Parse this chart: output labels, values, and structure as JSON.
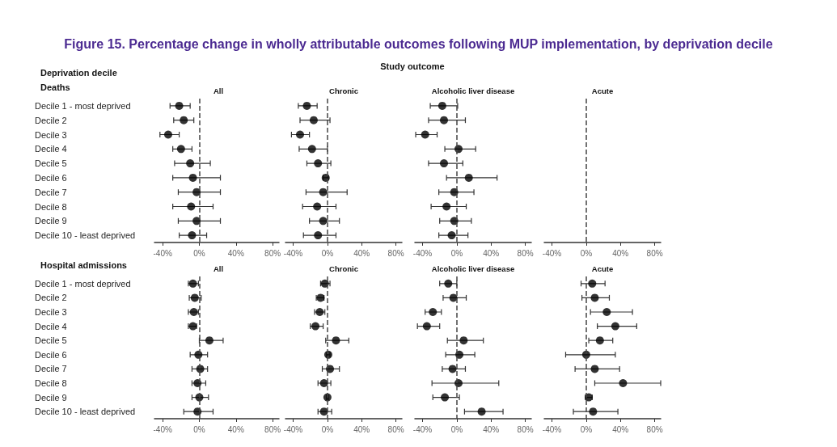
{
  "chart_data": [
    {
      "type": "scatter",
      "orientation": "horizontal",
      "title": "All",
      "ylabel": "Deaths",
      "annotations": [
        "Figure 15. Percentage change in wholly attributable outcomes following MUP implementation, by deprivation decile",
        "Study outcome",
        "Deprivation decile"
      ],
      "categories": [
        "Decile 1 - most deprived",
        "Decile 2",
        "Decile 3",
        "Decile 4",
        "Decile 5",
        "Decile 6",
        "Decile 7",
        "Decile 8",
        "Decile 9",
        "Decile 10 - least deprived"
      ],
      "values": [
        -22,
        -17,
        -34,
        -20,
        -10,
        -7,
        -3,
        -9,
        -3,
        -8
      ],
      "errors": [
        [
          -32,
          -10
        ],
        [
          -28,
          -6
        ],
        [
          -43,
          -22
        ],
        [
          -29,
          -8
        ],
        [
          -27,
          12
        ],
        [
          -29,
          23
        ],
        [
          -23,
          23
        ],
        [
          -29,
          15
        ],
        [
          -23,
          23
        ],
        [
          -22,
          8
        ]
      ],
      "color": "#000000",
      "marker": "circle",
      "xlim": [
        -49,
        87
      ],
      "xticks": [
        {
          "value": -40,
          "label": "-40%"
        },
        {
          "value": 0,
          "label": "0%"
        },
        {
          "value": 40,
          "label": "40%"
        },
        {
          "value": 80,
          "label": "80%"
        }
      ],
      "ref_lines": [
        {
          "axis": "x",
          "value": 0,
          "line_style": "dashed"
        }
      ]
    },
    {
      "type": "scatter",
      "orientation": "horizontal",
      "title": "Chronic",
      "tick_labels": "x",
      "categories": [
        null,
        null,
        null,
        null,
        null,
        null,
        null,
        null,
        null,
        null
      ],
      "values": [
        -24,
        -16,
        -32,
        -18,
        -11,
        -2,
        -5,
        -12,
        -5,
        -11
      ],
      "errors": [
        [
          -34,
          -12
        ],
        [
          -32,
          3
        ],
        [
          -42,
          -21
        ],
        [
          -33,
          0
        ],
        [
          -24,
          4
        ],
        [
          -5,
          1
        ],
        [
          -25,
          23
        ],
        [
          -29,
          10
        ],
        [
          -21,
          14
        ],
        [
          -28,
          10
        ]
      ],
      "color": "#000000",
      "marker": "circle",
      "xlim": [
        -49,
        87
      ],
      "xticks": [
        {
          "value": -40,
          "label": "-40%"
        },
        {
          "value": 0,
          "label": "0%"
        },
        {
          "value": 40,
          "label": "40%"
        },
        {
          "value": 80,
          "label": "80%"
        }
      ],
      "ref_lines": [
        {
          "axis": "x",
          "value": 0,
          "line_style": "dashed"
        }
      ]
    },
    {
      "type": "scatter",
      "orientation": "horizontal",
      "title": "Alcoholic liver disease",
      "tick_labels": "x",
      "categories": [
        null,
        null,
        null,
        null,
        null,
        null,
        null,
        null,
        null,
        null
      ],
      "values": [
        -17,
        -15,
        -37,
        2,
        -15,
        14,
        -3,
        -12,
        -3,
        -6
      ],
      "errors": [
        [
          -31,
          1
        ],
        [
          -33,
          10
        ],
        [
          -48,
          -23
        ],
        [
          -14,
          22
        ],
        [
          -33,
          7
        ],
        [
          -12,
          47
        ],
        [
          -21,
          20
        ],
        [
          -30,
          11
        ],
        [
          -20,
          17
        ],
        [
          -21,
          13
        ]
      ],
      "color": "#000000",
      "marker": "circle",
      "xlim": [
        -49,
        87
      ],
      "xticks": [
        {
          "value": -40,
          "label": "-40%"
        },
        {
          "value": 0,
          "label": "0%"
        },
        {
          "value": 40,
          "label": "40%"
        },
        {
          "value": 80,
          "label": "80%"
        }
      ],
      "ref_lines": [
        {
          "axis": "x",
          "value": 0,
          "line_style": "dashed"
        }
      ]
    },
    {
      "type": "scatter",
      "orientation": "horizontal",
      "title": "Acute",
      "tick_labels": "x",
      "categories": [
        null,
        null,
        null,
        null,
        null,
        null,
        null,
        null,
        null,
        null
      ],
      "values": [
        null,
        null,
        null,
        null,
        null,
        null,
        null,
        null,
        null,
        null
      ],
      "color": "#000000",
      "marker": "circle",
      "xlim": [
        -49,
        87
      ],
      "xticks": [
        {
          "value": -40,
          "label": "-40%"
        },
        {
          "value": 0,
          "label": "0%"
        },
        {
          "value": 40,
          "label": "40%"
        },
        {
          "value": 80,
          "label": "80%"
        }
      ],
      "ref_lines": [
        {
          "axis": "x",
          "value": 0,
          "line_style": "dashed"
        }
      ]
    },
    {
      "type": "scatter",
      "orientation": "horizontal",
      "title": "All",
      "ylabel": "Hospital admissions",
      "categories": [
        "Decile 1 - most deprived",
        "Decile 2",
        "Decile 3",
        "Decile 4",
        "Decile 5",
        "Decile 6",
        "Decile 7",
        "Decile 8",
        "Decile 9",
        "Decile 10 - least deprived"
      ],
      "values": [
        -7,
        -5,
        -6,
        -7,
        11,
        -1,
        1,
        -2,
        0,
        -2
      ],
      "errors": [
        [
          -12,
          -1
        ],
        [
          -11,
          2
        ],
        [
          -12,
          -1
        ],
        [
          -12,
          -3
        ],
        [
          0,
          26
        ],
        [
          -10,
          9
        ],
        [
          -8,
          9
        ],
        [
          -8,
          7
        ],
        [
          -8,
          10
        ],
        [
          -17,
          15
        ]
      ],
      "color": "#000000",
      "marker": "circle",
      "xlim": [
        -49,
        87
      ],
      "xticks": [
        {
          "value": -40,
          "label": "-40%"
        },
        {
          "value": 0,
          "label": "0%"
        },
        {
          "value": 40,
          "label": "40%"
        },
        {
          "value": 80,
          "label": "80%"
        }
      ],
      "ref_lines": [
        {
          "axis": "x",
          "value": 0,
          "line_style": "dashed"
        }
      ]
    },
    {
      "type": "scatter",
      "orientation": "horizontal",
      "title": "Chronic",
      "tick_labels": "x",
      "categories": [
        null,
        null,
        null,
        null,
        null,
        null,
        null,
        null,
        null,
        null
      ],
      "values": [
        -3,
        -8,
        -9,
        -14,
        10,
        1,
        3,
        -4,
        0,
        -4
      ],
      "errors": [
        [
          -8,
          3
        ],
        [
          -13,
          -4
        ],
        [
          -15,
          -3
        ],
        [
          -20,
          -5
        ],
        [
          -2,
          25
        ],
        [
          -1,
          3
        ],
        [
          -6,
          14
        ],
        [
          -11,
          4
        ],
        [
          -1,
          1
        ],
        [
          -11,
          5
        ]
      ],
      "color": "#000000",
      "marker": "circle",
      "xlim": [
        -49,
        87
      ],
      "xticks": [
        {
          "value": -40,
          "label": "-40%"
        },
        {
          "value": 0,
          "label": "0%"
        },
        {
          "value": 40,
          "label": "40%"
        },
        {
          "value": 80,
          "label": "80%"
        }
      ],
      "ref_lines": [
        {
          "axis": "x",
          "value": 0,
          "line_style": "dashed"
        }
      ]
    },
    {
      "type": "scatter",
      "orientation": "horizontal",
      "title": "Alcoholic liver disease",
      "tick_labels": "x",
      "categories": [
        null,
        null,
        null,
        null,
        null,
        null,
        null,
        null,
        null,
        null
      ],
      "values": [
        -10,
        -4,
        -28,
        -35,
        8,
        3,
        -5,
        2,
        -14,
        29
      ],
      "errors": [
        [
          -20,
          0
        ],
        [
          -16,
          11
        ],
        [
          -37,
          -18
        ],
        [
          -46,
          -20
        ],
        [
          -11,
          31
        ],
        [
          -13,
          21
        ],
        [
          -17,
          10
        ],
        [
          -29,
          49
        ],
        [
          -28,
          3
        ],
        [
          9,
          54
        ]
      ],
      "color": "#000000",
      "marker": "circle",
      "xlim": [
        -49,
        87
      ],
      "xticks": [
        {
          "value": -40,
          "label": "-40%"
        },
        {
          "value": 0,
          "label": "0%"
        },
        {
          "value": 40,
          "label": "40%"
        },
        {
          "value": 80,
          "label": "80%"
        }
      ],
      "ref_lines": [
        {
          "axis": "x",
          "value": 0,
          "line_style": "dashed"
        }
      ]
    },
    {
      "type": "scatter",
      "orientation": "horizontal",
      "title": "Acute",
      "tick_labels": "x",
      "categories": [
        null,
        null,
        null,
        null,
        null,
        null,
        null,
        null,
        null,
        null
      ],
      "values": [
        7,
        10,
        24,
        34,
        16,
        0,
        10,
        43,
        3,
        8
      ],
      "errors": [
        [
          -6,
          22
        ],
        [
          -5,
          27
        ],
        [
          5,
          54
        ],
        [
          13,
          59
        ],
        [
          3,
          31
        ],
        [
          -24,
          34
        ],
        [
          -13,
          39
        ],
        [
          10,
          87
        ],
        [
          -1,
          7
        ],
        [
          -15,
          37
        ]
      ],
      "color": "#000000",
      "marker": "circle",
      "xlim": [
        -49,
        87
      ],
      "xticks": [
        {
          "value": -40,
          "label": "-40%"
        },
        {
          "value": 0,
          "label": "0%"
        },
        {
          "value": 40,
          "label": "40%"
        },
        {
          "value": 80,
          "label": "80%"
        }
      ],
      "ref_lines": [
        {
          "axis": "x",
          "value": 0,
          "line_style": "dashed"
        }
      ]
    }
  ]
}
